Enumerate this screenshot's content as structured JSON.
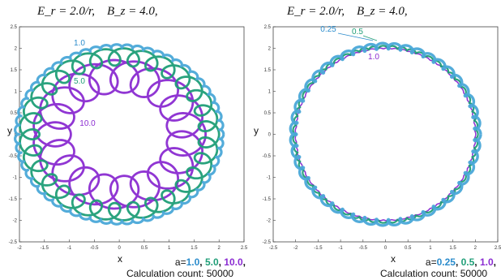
{
  "chart_data": [
    {
      "type": "line",
      "title_equation": "E_r = 2.0/r,    B_z = 4.0,",
      "xlabel": "x",
      "ylabel": "y",
      "xlim": [
        -2,
        2.5
      ],
      "ylim": [
        -2.5,
        2.5
      ],
      "xticks": [
        "-2",
        "-1.5",
        "-1",
        "-0.5",
        "0",
        "0.5",
        "1",
        "1.5",
        "2",
        "2.5"
      ],
      "yticks": [
        "2.5",
        "2",
        "1.5",
        "1",
        "0.5",
        "0",
        "-0.5",
        "-1",
        "-1.5",
        "-2",
        "-2.5"
      ],
      "series": [
        {
          "name": "1.0",
          "color": "#4aa8d8",
          "radius": 2.05,
          "loops": 60,
          "loop_radius": 0.04
        },
        {
          "name": "5.0",
          "color": "#1f9e77",
          "radius": 1.8,
          "loops": 30,
          "loop_radius": 0.2
        },
        {
          "name": "10.0",
          "color": "#8a2bd1",
          "radius": 1.35,
          "loops": 20,
          "loop_radius": 0.38
        }
      ],
      "annotations": [
        "1.0",
        "5.0",
        "10.0"
      ],
      "legend_label": "a=",
      "legend": [
        "1.0",
        "5.0",
        "10.0"
      ],
      "calc_label": "Calculation count: 50000"
    },
    {
      "type": "line",
      "title_equation": "E_r = 2.0/r,    B_z = 4.0,",
      "xlabel": "x",
      "ylabel": "y",
      "xlim": [
        -2.5,
        2.5
      ],
      "ylim": [
        -2.5,
        2.5
      ],
      "xticks": [
        "-2.5",
        "-2",
        "-1.5",
        "-1",
        "-0.5",
        "0",
        "0.5",
        "1",
        "1.5",
        "2",
        "2.5"
      ],
      "yticks": [
        "2.5",
        "2",
        "1.5",
        "1",
        "0.5",
        "0",
        "-0.5",
        "-1",
        "-1.5",
        "-2",
        "-2.5"
      ],
      "series": [
        {
          "name": "0.25",
          "color": "#4aa8d8",
          "radius": 2.05,
          "loops": 48,
          "loop_radius": 0.07
        },
        {
          "name": "0.5",
          "color": "#1f9e77",
          "radius": 2.03,
          "loops": 60,
          "loop_radius": 0.03
        },
        {
          "name": "1.0",
          "color": "#8a2bd1",
          "radius": 2.0,
          "loops": 70,
          "loop_radius": 0.01
        }
      ],
      "annotations": [
        "0.25",
        "0.5",
        "1.0"
      ],
      "legend_label": "a=",
      "legend": [
        "0.25",
        "0.5",
        "1.0"
      ],
      "calc_label": "Calculation count: 50000"
    }
  ]
}
